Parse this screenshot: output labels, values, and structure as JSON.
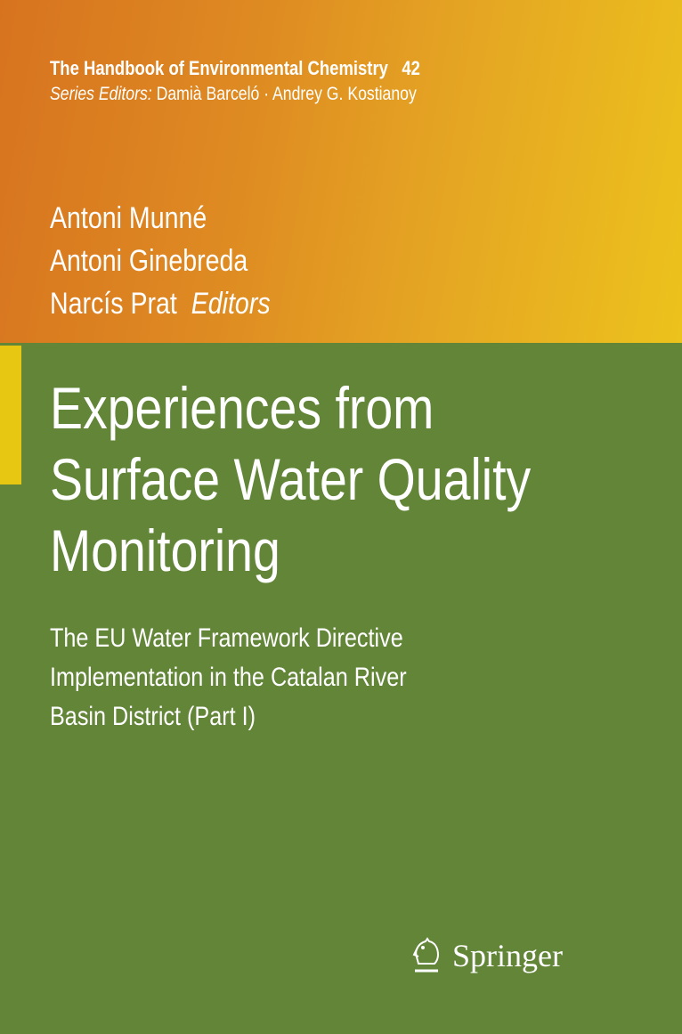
{
  "series": {
    "name": "The Handbook of Environmental Chemistry",
    "volume": "42",
    "editors_label": "Series Editors:",
    "editors": "Damià Barceló · Andrey G. Kostianoy"
  },
  "authors": [
    "Antoni Munné",
    "Antoni Ginebreda",
    "Narcís Prat"
  ],
  "authors_role": "Editors",
  "title": [
    "Experiences from",
    "Surface Water Quality",
    "Monitoring"
  ],
  "subtitle": [
    "The EU Water Framework Directive",
    "Implementation in the Catalan River",
    "Basin District (Part I)"
  ],
  "publisher": "Springer",
  "colors": {
    "top_start": "#d7731f",
    "top_end": "#ecc21c",
    "green": "#628538",
    "accent_bar": "#e8c713"
  },
  "icons": {
    "publisher_logo": "springer-horse-icon"
  }
}
